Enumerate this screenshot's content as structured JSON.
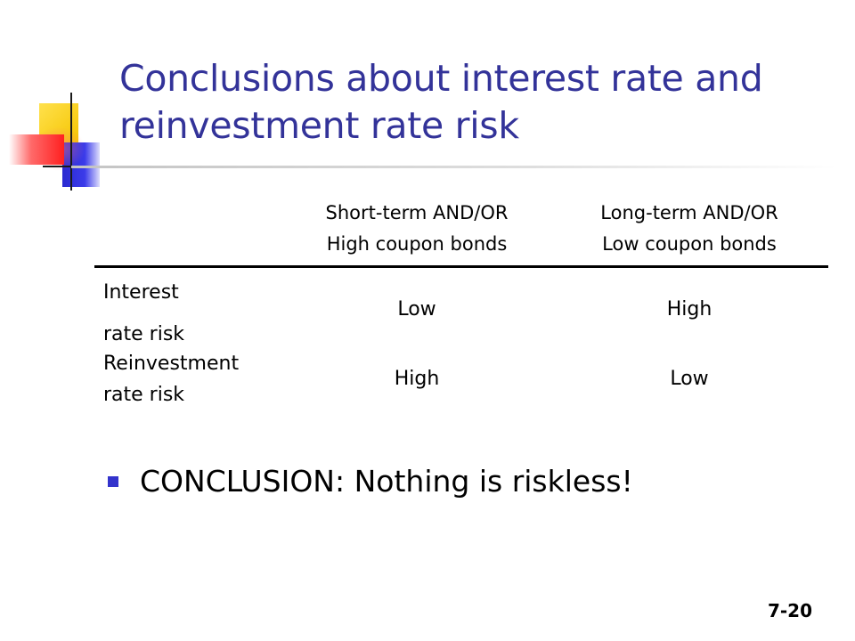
{
  "slide": {
    "title_lines": [
      "Conclusions about interest rate and",
      "reinvestment rate risk"
    ],
    "table": {
      "headers": [
        {
          "lines": [
            "Short-term AND/OR",
            "High coupon bonds"
          ]
        },
        {
          "lines": [
            "Long-term AND/OR",
            "Low coupon bonds"
          ]
        }
      ],
      "rows": [
        {
          "label_lines": [
            "Interest",
            "rate risk"
          ],
          "values": [
            "Low",
            "High"
          ]
        },
        {
          "label_lines": [
            "Reinvestment",
            "rate risk"
          ],
          "values": [
            "High",
            "Low"
          ]
        }
      ]
    },
    "bullet": "CONCLUSION: Nothing is riskless!",
    "slide_number": "7-20"
  },
  "colors": {
    "title": "#333399",
    "bullet": "#3333cc",
    "accent_yellow": "#f5c400",
    "accent_red": "#ff2020",
    "accent_blue": "#2a2ad0"
  }
}
